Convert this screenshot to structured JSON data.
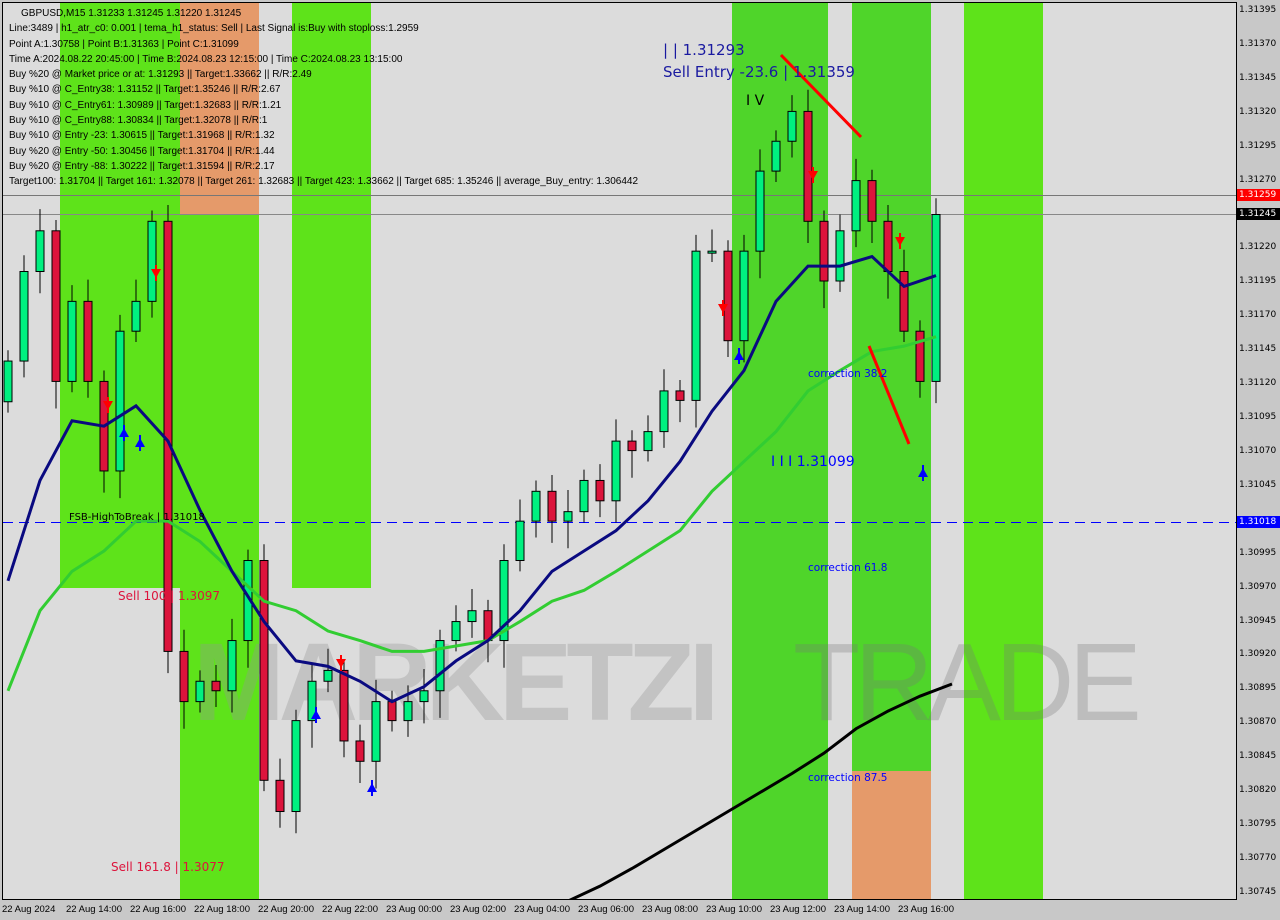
{
  "header": {
    "symbol_line": "GBPUSD,M15  1.31233 1.31245 1.31220 1.31245",
    "lines": [
      "Line:3489 | h1_atr_c0: 0.001 | tema_h1_status: Sell | Last Signal is:Buy with stoploss:1.2959",
      "Point A:1.30758 | Point B:1.31363 | Point C:1.31099",
      "Time A:2024.08.22 20:45:00 | Time B:2024.08.23 12:15:00 | Time C:2024.08.23 13:15:00",
      "Buy %20 @ Market price or at: 1.31293 || Target:1.33662 || R/R:2.49",
      "Buy %10 @ C_Entry38: 1.31152 || Target:1.35246 || R/R:2.67",
      "Buy %10 @ C_Entry61: 1.30989 || Target:1.32683 || R/R:1.21",
      "Buy %10 @ C_Entry88: 1.30834 || Target:1.32078 || R/R:1",
      "Buy %10 @ Entry -23: 1.30615 || Target:1.31968 || R/R:1.32",
      "Buy %20 @ Entry -50: 1.30456 || Target:1.31704 || R/R:1.44",
      "Buy %20 @ Entry -88: 1.30222 || Target:1.31594 || R/R:2.17",
      "Target100: 1.31704 || Target 161: 1.32078 || Target 261: 1.32683 || Target 423: 1.33662 || Target 685: 1.35246 || average_Buy_entry: 1.306442"
    ]
  },
  "watermark": {
    "left": "MARKETZI",
    "right": "TRADE"
  },
  "annotations": {
    "sell_entry": "Sell Entry -23.6 | 1.31359",
    "point_b_price": "| | 1.31293",
    "fsb": "FSB-HighToBreak | 1.31018",
    "sell100": "Sell 100 | 1.3097",
    "sell161": "Sell 161.8 | 1.3077",
    "wave_iv": "I V",
    "wave_iii": "I I I 1.31099",
    "corr38": "correction 38.2",
    "corr61": "correction 61.8",
    "corr87": "correction 87.5"
  },
  "colors": {
    "bull": "#00f080",
    "bear": "#dc143c",
    "ma_fast": "#0a0a80",
    "ma_mid": "#32cd32",
    "ma_slow": "#000000",
    "zone_green": "#5ee31a",
    "zone_orange": "#e59a6a",
    "price_tag_red": "#ff0000",
    "price_tag_black": "#000000",
    "level_blue": "#0000ff"
  },
  "chart_data": {
    "type": "candlestick",
    "symbol": "GBPUSD",
    "timeframe": "M15",
    "ylim": [
      1.30735,
      1.31405
    ],
    "y_ticks": [
      "1.31395",
      "1.31370",
      "1.31345",
      "1.31320",
      "1.31295",
      "1.31270",
      "1.31220",
      "1.31195",
      "1.31170",
      "1.31145",
      "1.31120",
      "1.31095",
      "1.31070",
      "1.31045",
      "1.30995",
      "1.30970",
      "1.30945",
      "1.30920",
      "1.30895",
      "1.30870",
      "1.30845",
      "1.30820",
      "1.30795",
      "1.30770",
      "1.30745"
    ],
    "x_ticks": [
      "22 Aug 2024",
      "22 Aug 14:00",
      "22 Aug 16:00",
      "22 Aug 18:00",
      "22 Aug 20:00",
      "22 Aug 22:00",
      "23 Aug 00:00",
      "23 Aug 02:00",
      "23 Aug 04:00",
      "23 Aug 06:00",
      "23 Aug 08:00",
      "23 Aug 10:00",
      "23 Aug 12:00",
      "23 Aug 14:00",
      "23 Aug 16:00"
    ],
    "price_tags": {
      "red": "1.31259",
      "current": "1.31245",
      "blue_level": "1.31018"
    },
    "closes_30min": [
      1.31137,
      1.31203,
      1.31233,
      1.31122,
      1.31181,
      1.31122,
      1.31056,
      1.31159,
      1.31181,
      1.3124,
      1.30923,
      1.30886,
      1.30901,
      1.30894,
      1.30931,
      1.3099,
      1.30828,
      1.30805,
      1.30872,
      1.30901,
      1.30909,
      1.30857,
      1.30842,
      1.30886,
      1.30872,
      1.30886,
      1.30894,
      1.30931,
      1.30945,
      1.30953,
      1.30931,
      1.3099,
      1.31019,
      1.31041,
      1.31019,
      1.31026,
      1.31049,
      1.31034,
      1.31078,
      1.31071,
      1.31085,
      1.31115,
      1.31108,
      1.31218,
      1.31218,
      1.31152,
      1.31218,
      1.31277,
      1.31299,
      1.31321,
      1.3124,
      1.31196,
      1.31233,
      1.3127,
      1.3124,
      1.31203,
      1.31159,
      1.31122,
      1.31245
    ],
    "ma_fast_1h": [
      1.30975,
      1.31049,
      1.31093,
      1.31089,
      1.31104,
      1.31078,
      1.31027,
      1.30982,
      1.30945,
      1.30916,
      1.30912,
      1.30901,
      1.30886,
      1.30897,
      1.30916,
      1.30931,
      1.30953,
      1.30982,
      1.30997,
      1.31012,
      1.31034,
      1.31063,
      1.311,
      1.3113,
      1.31181,
      1.31207,
      1.31207,
      1.31214,
      1.31192,
      1.312
    ],
    "ma_mid_1h": [
      1.30894,
      1.30953,
      1.30982,
      1.30997,
      1.31019,
      1.31019,
      1.31004,
      1.30982,
      1.3096,
      1.30953,
      1.30938,
      1.30931,
      1.30923,
      1.30923,
      1.30927,
      1.30931,
      1.30945,
      1.3096,
      1.30968,
      1.30982,
      1.30997,
      1.31012,
      1.31041,
      1.31063,
      1.31085,
      1.31115,
      1.3113,
      1.31144,
      1.31148,
      1.31155
    ],
    "ma_slow_1h_from_23Aug04:00": [
      1.30739,
      1.3075,
      1.30763,
      1.30777,
      1.30791,
      1.30805,
      1.30819,
      1.30833,
      1.30848,
      1.30866,
      1.30879,
      1.3089,
      1.30899
    ]
  }
}
